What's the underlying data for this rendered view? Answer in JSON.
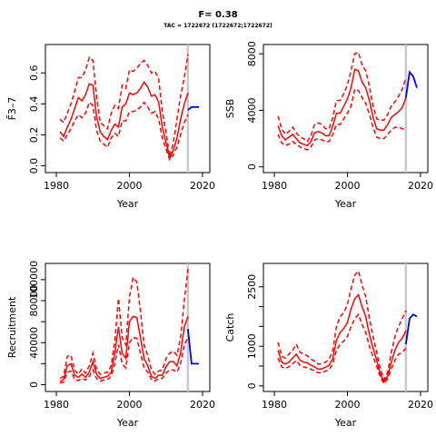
{
  "figure": {
    "title": "F= 0.38",
    "subtitle": "TAC = 1722672 (1722672;1722672)",
    "colors": {
      "history": "#ff0000",
      "projection": "#0000ff",
      "marker": "#c8c8c8"
    }
  },
  "chart_data": [
    {
      "type": "line",
      "xlabel": "Year",
      "ylabel": "F̄3–7",
      "xlim": [
        1978,
        2021
      ],
      "ylim": [
        -0.02,
        0.76
      ],
      "xticks": [
        "1980",
        "2000",
        "2020"
      ],
      "yticks": [
        "0.0",
        "0.2",
        "0.4",
        "0.6"
      ],
      "marker_year": 2016,
      "x": [
        1981,
        1982,
        1983,
        1984,
        1985,
        1986,
        1987,
        1988,
        1989,
        1990,
        1991,
        1992,
        1993,
        1994,
        1995,
        1996,
        1997,
        1998,
        1999,
        2000,
        2001,
        2002,
        2003,
        2004,
        2005,
        2006,
        2007,
        2008,
        2009,
        2010,
        2011,
        2012,
        2013,
        2014,
        2015,
        2016
      ],
      "series": [
        {
          "role": "median",
          "values": [
            0.22,
            0.19,
            0.25,
            0.3,
            0.37,
            0.44,
            0.42,
            0.46,
            0.53,
            0.52,
            0.32,
            0.22,
            0.19,
            0.17,
            0.23,
            0.27,
            0.25,
            0.38,
            0.4,
            0.47,
            0.46,
            0.47,
            0.5,
            0.54,
            0.51,
            0.45,
            0.46,
            0.41,
            0.25,
            0.15,
            0.05,
            0.1,
            0.18,
            0.3,
            0.4,
            0.47
          ]
        },
        {
          "role": "upper",
          "values": [
            0.3,
            0.28,
            0.34,
            0.4,
            0.48,
            0.57,
            0.57,
            0.62,
            0.7,
            0.68,
            0.45,
            0.28,
            0.26,
            0.24,
            0.34,
            0.39,
            0.37,
            0.52,
            0.5,
            0.62,
            0.61,
            0.63,
            0.66,
            0.68,
            0.65,
            0.6,
            0.61,
            0.56,
            0.35,
            0.22,
            0.06,
            0.15,
            0.3,
            0.45,
            0.57,
            0.72
          ]
        },
        {
          "role": "lower",
          "values": [
            0.18,
            0.16,
            0.2,
            0.24,
            0.29,
            0.33,
            0.31,
            0.34,
            0.41,
            0.39,
            0.23,
            0.16,
            0.14,
            0.12,
            0.18,
            0.21,
            0.19,
            0.29,
            0.29,
            0.35,
            0.35,
            0.36,
            0.38,
            0.41,
            0.38,
            0.34,
            0.35,
            0.3,
            0.18,
            0.11,
            0.04,
            0.07,
            0.12,
            0.2,
            0.28,
            0.33
          ]
        }
      ],
      "projection": {
        "x": [
          2016,
          2017,
          2018,
          2019
        ],
        "values": [
          0.36,
          0.38,
          0.38,
          0.38
        ]
      }
    },
    {
      "type": "line",
      "xlabel": "Year",
      "ylabel": "SSB",
      "xlim": [
        1978,
        2021
      ],
      "ylim": [
        -150,
        8400
      ],
      "xticks": [
        "1980",
        "2000",
        "2020"
      ],
      "yticks": [
        "0",
        "4000",
        "8000"
      ],
      "marker_year": 2016,
      "x": [
        1981,
        1982,
        1983,
        1984,
        1985,
        1986,
        1987,
        1988,
        1989,
        1990,
        1991,
        1992,
        1993,
        1994,
        1995,
        1996,
        1997,
        1998,
        1999,
        2000,
        2001,
        2002,
        2003,
        2004,
        2005,
        2006,
        2007,
        2008,
        2009,
        2010,
        2011,
        2012,
        2013,
        2014,
        2015,
        2016
      ],
      "series": [
        {
          "role": "median",
          "values": [
            2900,
            2200,
            1900,
            2100,
            2300,
            2000,
            1700,
            1600,
            1500,
            1800,
            2400,
            2500,
            2400,
            2200,
            2200,
            2900,
            3800,
            3800,
            4300,
            4800,
            5600,
            6900,
            6800,
            6000,
            5600,
            4700,
            3500,
            2700,
            2600,
            2600,
            3000,
            3500,
            3700,
            3900,
            4200,
            4900
          ]
        },
        {
          "role": "upper",
          "values": [
            3600,
            2700,
            2300,
            2500,
            2800,
            2400,
            2100,
            2000,
            1800,
            2200,
            3000,
            3100,
            3000,
            2700,
            2700,
            3500,
            4700,
            4700,
            5200,
            5800,
            6800,
            8000,
            8100,
            7200,
            6800,
            5700,
            4300,
            3400,
            3300,
            3300,
            3700,
            4300,
            4600,
            5000,
            5500,
            6300
          ]
        },
        {
          "role": "lower",
          "values": [
            2300,
            1700,
            1500,
            1600,
            1800,
            1600,
            1400,
            1300,
            1200,
            1400,
            1900,
            2000,
            1900,
            1800,
            1800,
            2300,
            3000,
            3000,
            3400,
            3800,
            4300,
            5500,
            5400,
            4900,
            4500,
            3700,
            2800,
            2100,
            2000,
            2000,
            2300,
            2600,
            2800,
            2800,
            2700,
            2600
          ]
        }
      ],
      "projection": {
        "x": [
          2016,
          2017,
          2018,
          2019
        ],
        "values": [
          4900,
          6700,
          6400,
          5600
        ]
      }
    },
    {
      "type": "line",
      "xlabel": "Year",
      "ylabel": "Recruitment",
      "xlim": [
        1978,
        2021
      ],
      "ylim": [
        -3000,
        112000
      ],
      "xticks": [
        "1980",
        "2000",
        "2020"
      ],
      "yticks": [
        "0",
        "40000",
        "80000",
        "100000"
      ],
      "ytick_values": [
        0,
        40000,
        80000,
        100000
      ],
      "extra_yticks": [
        20000,
        60000
      ],
      "marker_year": 2016,
      "x": [
        1981,
        1982,
        1983,
        1984,
        1985,
        1986,
        1987,
        1988,
        1989,
        1990,
        1991,
        1992,
        1993,
        1994,
        1995,
        1996,
        1997,
        1998,
        1999,
        2000,
        2001,
        2002,
        2003,
        2004,
        2005,
        2006,
        2007,
        2008,
        2009,
        2010,
        2011,
        2012,
        2013,
        2014,
        2015,
        2016
      ],
      "series": [
        {
          "role": "median",
          "values": [
            3000,
            5000,
            18000,
            20000,
            9000,
            7000,
            10000,
            7000,
            12000,
            22000,
            10000,
            6000,
            7000,
            8000,
            12000,
            30000,
            55000,
            30000,
            25000,
            60000,
            65000,
            64000,
            45000,
            25000,
            18000,
            8000,
            6000,
            9000,
            9000,
            17000,
            22000,
            22000,
            18000,
            30000,
            55000,
            65000
          ]
        },
        {
          "role": "upper",
          "values": [
            6000,
            8000,
            27000,
            28000,
            14000,
            10000,
            15000,
            11000,
            18000,
            30000,
            15000,
            10000,
            11000,
            12000,
            18000,
            42000,
            82000,
            45000,
            38000,
            83000,
            102000,
            98000,
            70000,
            38000,
            28000,
            14000,
            10000,
            13000,
            14000,
            25000,
            30000,
            32000,
            28000,
            45000,
            80000,
            110000
          ]
        },
        {
          "role": "lower",
          "values": [
            1500,
            2500,
            12000,
            13000,
            5000,
            4000,
            6000,
            4500,
            8000,
            14000,
            6000,
            3500,
            4500,
            5000,
            8000,
            20000,
            38000,
            20000,
            16000,
            40000,
            45000,
            44000,
            30000,
            16000,
            12000,
            5000,
            3500,
            6000,
            6000,
            11000,
            14000,
            14000,
            12000,
            20000,
            38000,
            45000
          ]
        }
      ],
      "projection": {
        "x": [
          2016,
          2017,
          2018,
          2019
        ],
        "values": [
          53000,
          20000,
          20000,
          20000
        ]
      }
    },
    {
      "type": "line",
      "xlabel": "Year",
      "ylabel": "Catch",
      "xlim": [
        1978,
        2021
      ],
      "ylim": [
        -50,
        3000
      ],
      "xticks": [
        "1980",
        "2000",
        "2020"
      ],
      "yticks": [
        "0",
        "1000",
        "2500"
      ],
      "ytick_values": [
        0,
        1000,
        2500
      ],
      "extra_yticks": [
        500,
        1500,
        2000
      ],
      "marker_year": 2016,
      "x": [
        1981,
        1982,
        1983,
        1984,
        1985,
        1986,
        1987,
        1988,
        1989,
        1990,
        1991,
        1992,
        1993,
        1994,
        1995,
        1996,
        1997,
        1998,
        1999,
        2000,
        2001,
        2002,
        2003,
        2004,
        2005,
        2006,
        2007,
        2008,
        2009,
        2010,
        2011,
        2012,
        2013,
        2014,
        2015,
        2016
      ],
      "series": [
        {
          "role": "median",
          "values": [
            900,
            600,
            550,
            600,
            700,
            800,
            650,
            600,
            580,
            520,
            480,
            420,
            430,
            470,
            520,
            700,
            1150,
            1350,
            1450,
            1600,
            1950,
            2200,
            2300,
            2000,
            1750,
            1300,
            950,
            650,
            300,
            100,
            250,
            600,
            900,
            1100,
            1200,
            1400
          ]
        },
        {
          "role": "upper",
          "values": [
            1100,
            750,
            700,
            800,
            900,
            1050,
            850,
            800,
            760,
            680,
            620,
            550,
            560,
            600,
            680,
            900,
            1500,
            1750,
            1850,
            2050,
            2450,
            2800,
            2900,
            2550,
            2250,
            1700,
            1250,
            850,
            420,
            160,
            350,
            850,
            1250,
            1500,
            1700,
            1900
          ]
        },
        {
          "role": "lower",
          "values": [
            700,
            480,
            440,
            480,
            560,
            640,
            520,
            480,
            460,
            420,
            380,
            330,
            340,
            370,
            410,
            560,
            900,
            1050,
            1130,
            1250,
            1500,
            1700,
            1800,
            1550,
            1350,
            1000,
            730,
            500,
            220,
            60,
            180,
            430,
            650,
            800,
            850,
            950
          ]
        }
      ],
      "projection": {
        "x": [
          2016,
          2017,
          2018,
          2019
        ],
        "values": [
          1050,
          1700,
          1800,
          1750
        ]
      }
    }
  ]
}
